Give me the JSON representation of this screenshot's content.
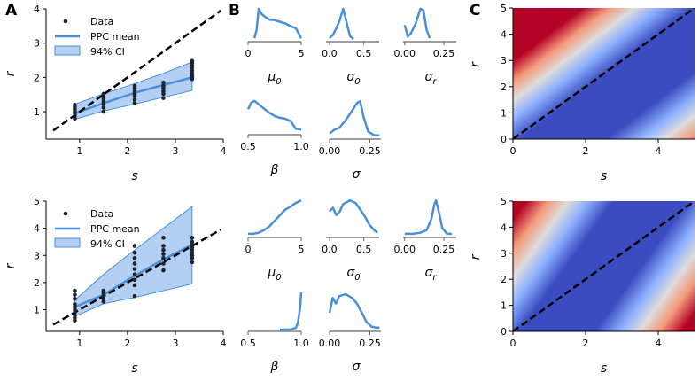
{
  "panel_labels": [
    "A",
    "B",
    "C"
  ],
  "chart_data": [
    {
      "id": "A_top",
      "type": "scatter",
      "xlabel": "s",
      "ylabel": "r",
      "xlim": [
        0.3,
        4.0
      ],
      "ylim": [
        0.2,
        4.0
      ],
      "xticks": [
        1,
        2,
        3,
        4
      ],
      "yticks": [
        1,
        2,
        3,
        4
      ],
      "legend": {
        "position": "top-left",
        "entries": [
          "Data",
          "PPC mean",
          "94% CI"
        ]
      },
      "diagonal": true,
      "scatter": [
        {
          "x": 0.9,
          "y": [
            0.8,
            0.87,
            0.95,
            1.0,
            1.08,
            1.15,
            1.2
          ]
        },
        {
          "x": 1.5,
          "y": [
            1.0,
            1.12,
            1.22,
            1.3,
            1.38,
            1.45,
            1.52
          ]
        },
        {
          "x": 2.15,
          "y": [
            1.25,
            1.35,
            1.45,
            1.52,
            1.6,
            1.68,
            1.75
          ]
        },
        {
          "x": 2.75,
          "y": [
            1.4,
            1.52,
            1.6,
            1.68,
            1.75,
            1.85
          ]
        },
        {
          "x": 3.35,
          "y": [
            1.95,
            2.0,
            2.05,
            2.12,
            2.2,
            2.28,
            2.35,
            2.42,
            2.48
          ]
        }
      ],
      "mean": {
        "x": [
          0.9,
          1.5,
          2.15,
          2.75,
          3.35
        ],
        "y": [
          0.95,
          1.25,
          1.55,
          1.78,
          2.0
        ]
      },
      "ci_lower": [
        0.78,
        1.02,
        1.22,
        1.42,
        1.62
      ],
      "ci_upper": [
        1.22,
        1.52,
        1.82,
        2.12,
        2.45
      ]
    },
    {
      "id": "A_bottom",
      "type": "scatter",
      "xlabel": "s",
      "ylabel": "r",
      "xlim": [
        0.3,
        4.0
      ],
      "ylim": [
        0.2,
        5.0
      ],
      "xticks": [
        1,
        2,
        3,
        4
      ],
      "yticks": [
        1,
        2,
        3,
        4,
        5
      ],
      "legend": {
        "position": "top-left",
        "entries": [
          "Data",
          "PPC mean",
          "94% CI"
        ]
      },
      "diagonal": true,
      "scatter": [
        {
          "x": 0.9,
          "y": [
            0.6,
            0.7,
            0.8,
            0.9,
            1.0,
            1.1,
            1.2,
            1.4,
            1.55,
            1.7
          ]
        },
        {
          "x": 1.5,
          "y": [
            1.3,
            1.4,
            1.5,
            1.6,
            1.7
          ]
        },
        {
          "x": 2.15,
          "y": [
            1.5,
            1.9,
            2.1,
            2.3,
            2.5,
            2.7,
            2.9,
            3.1,
            3.35
          ]
        },
        {
          "x": 2.75,
          "y": [
            2.45,
            2.7,
            2.9,
            3.05,
            3.2,
            3.35,
            3.65
          ]
        },
        {
          "x": 3.35,
          "y": [
            2.75,
            2.9,
            3.0,
            3.1,
            3.2,
            3.3,
            3.4,
            3.5,
            3.65
          ]
        }
      ],
      "mean": {
        "x": [
          0.9,
          1.5,
          2.15,
          2.75,
          3.35
        ],
        "y": [
          1.1,
          1.55,
          2.25,
          2.85,
          3.4
        ]
      },
      "ci_lower": [
        0.75,
        1.22,
        1.45,
        1.7,
        1.95
      ],
      "ci_upper": [
        1.35,
        2.3,
        3.2,
        4.0,
        4.8
      ]
    },
    {
      "id": "B_mu0_top",
      "type": "line",
      "xlabel": "μ0",
      "xlim": [
        0,
        5
      ],
      "xticks": [
        "0",
        "5"
      ],
      "xtick_values": [
        0,
        5
      ],
      "x": [
        0.6,
        0.8,
        1.0,
        1.3,
        1.6,
        2.0,
        2.5,
        3.0,
        3.5,
        4.0,
        4.5,
        5.0
      ],
      "y": [
        0.05,
        0.3,
        0.95,
        0.78,
        0.7,
        0.62,
        0.6,
        0.55,
        0.5,
        0.42,
        0.35,
        0.05
      ]
    },
    {
      "id": "B_sigma0_top",
      "type": "line",
      "xlabel": "σ0",
      "xlim": [
        -0.05,
        0.75
      ],
      "xticks": [
        "0.0",
        "0.5"
      ],
      "xtick_values": [
        0.0,
        0.5
      ],
      "x": [
        0.0,
        0.05,
        0.1,
        0.15,
        0.2,
        0.23,
        0.27,
        0.3,
        0.35
      ],
      "y": [
        0.05,
        0.15,
        0.35,
        0.6,
        0.95,
        0.7,
        0.35,
        0.12,
        0.02
      ]
    },
    {
      "id": "B_sigmar_top",
      "type": "line",
      "xlabel": "σr",
      "xlim": [
        -0.01,
        0.34
      ],
      "xticks": [
        "0.00",
        "0.25"
      ],
      "xtick_values": [
        0.0,
        0.25
      ],
      "x": [
        0.0,
        0.02,
        0.04,
        0.07,
        0.1,
        0.12,
        0.14,
        0.16
      ],
      "y": [
        0.45,
        0.1,
        0.2,
        0.5,
        0.95,
        0.9,
        0.3,
        0.05
      ]
    },
    {
      "id": "B_beta_top",
      "type": "line",
      "xlabel": "β",
      "xlim": [
        0.5,
        1.0
      ],
      "xticks": [
        "0.5",
        "1.0"
      ],
      "xtick_values": [
        0.5,
        1.0
      ],
      "x": [
        0.5,
        0.53,
        0.56,
        0.6,
        0.65,
        0.7,
        0.75,
        0.8,
        0.85,
        0.9,
        0.95,
        1.0
      ],
      "y": [
        0.7,
        0.9,
        0.95,
        0.85,
        0.72,
        0.6,
        0.5,
        0.45,
        0.42,
        0.35,
        0.12,
        0.1
      ]
    },
    {
      "id": "B_sigma_top",
      "type": "line",
      "xlabel": "σ",
      "xlim": [
        0.0,
        0.33
      ],
      "xticks": [
        "0.00",
        "0.25"
      ],
      "xtick_values": [
        0.0,
        0.25
      ],
      "x": [
        0.0,
        0.03,
        0.06,
        0.1,
        0.14,
        0.17,
        0.19,
        0.21,
        0.24,
        0.28,
        0.31
      ],
      "y": [
        0.1,
        0.2,
        0.25,
        0.45,
        0.7,
        0.9,
        0.95,
        0.55,
        0.15,
        0.05,
        0.05
      ]
    },
    {
      "id": "B_mu0_bottom",
      "type": "line",
      "xlabel": "μ0",
      "xlim": [
        0,
        5
      ],
      "xticks": [
        "0",
        "5"
      ],
      "xtick_values": [
        0,
        5
      ],
      "x": [
        0.0,
        0.5,
        1.0,
        1.5,
        2.0,
        2.5,
        3.0,
        3.5,
        4.0,
        4.5,
        5.0
      ],
      "y": [
        0.05,
        0.05,
        0.08,
        0.15,
        0.25,
        0.4,
        0.55,
        0.7,
        0.78,
        0.88,
        0.95
      ]
    },
    {
      "id": "B_sigma0_bottom",
      "type": "line",
      "xlabel": "σ0",
      "xlim": [
        -0.05,
        0.75
      ],
      "xticks": [
        "0.0",
        "0.5"
      ],
      "xtick_values": [
        0.0,
        0.5
      ],
      "x": [
        0.0,
        0.05,
        0.1,
        0.15,
        0.2,
        0.3,
        0.38,
        0.45,
        0.52,
        0.58,
        0.65,
        0.7
      ],
      "y": [
        0.65,
        0.75,
        0.55,
        0.65,
        0.85,
        0.95,
        0.88,
        0.7,
        0.5,
        0.3,
        0.15,
        0.08
      ]
    },
    {
      "id": "B_sigmar_bottom",
      "type": "line",
      "xlabel": "σr",
      "xlim": [
        -0.01,
        0.34
      ],
      "xticks": [
        "0.00",
        "0.25"
      ],
      "xtick_values": [
        0.0,
        0.25
      ],
      "x": [
        0.0,
        0.05,
        0.1,
        0.14,
        0.17,
        0.19,
        0.2,
        0.22,
        0.24,
        0.27,
        0.3
      ],
      "y": [
        0.05,
        0.05,
        0.08,
        0.15,
        0.45,
        0.85,
        0.95,
        0.6,
        0.2,
        0.05,
        0.05
      ]
    },
    {
      "id": "B_beta_bottom",
      "type": "line",
      "xlabel": "β",
      "xlim": [
        0.5,
        1.0
      ],
      "xticks": [
        "0.5",
        "1.0"
      ],
      "xtick_values": [
        0.5,
        1.0
      ],
      "x": [
        0.8,
        0.9,
        0.95,
        0.97,
        0.99,
        1.0
      ],
      "y": [
        0.0,
        0.0,
        0.05,
        0.2,
        0.6,
        1.0
      ]
    },
    {
      "id": "B_sigma_bottom",
      "type": "line",
      "xlabel": "σ",
      "xlim": [
        0.0,
        0.33
      ],
      "xticks": [
        "0.00",
        "0.25"
      ],
      "xtick_values": [
        0.0,
        0.25
      ],
      "x": [
        0.0,
        0.02,
        0.04,
        0.06,
        0.1,
        0.14,
        0.17,
        0.2,
        0.23,
        0.26,
        0.29,
        0.31
      ],
      "y": [
        0.45,
        0.85,
        0.7,
        0.9,
        0.95,
        0.85,
        0.7,
        0.45,
        0.2,
        0.08,
        0.05,
        0.05
      ]
    },
    {
      "id": "C_top",
      "type": "heatmap",
      "xlabel": "s",
      "ylabel": "r",
      "xlim": [
        0,
        5
      ],
      "ylim": [
        0,
        5
      ],
      "xticks": [
        0,
        2,
        4
      ],
      "yticks": [
        0,
        1,
        2,
        3,
        4,
        5
      ],
      "colormap": "coolwarm",
      "diagonal": true,
      "stops": [
        {
          "offset": 0.0,
          "color": "#3b4cc0"
        },
        {
          "offset": 0.28,
          "color": "#3b4cc0"
        },
        {
          "offset": 0.5,
          "color": "#8db0fe"
        },
        {
          "offset": 0.66,
          "color": "#dddcdc"
        },
        {
          "offset": 0.82,
          "color": "#f49a7b"
        },
        {
          "offset": 1.0,
          "color": "#b40426"
        }
      ],
      "band": {
        "center_intercept": -0.2,
        "center_slope": 0.55
      }
    },
    {
      "id": "C_bottom",
      "type": "heatmap",
      "xlabel": "s",
      "ylabel": "r",
      "xlim": [
        0,
        5
      ],
      "ylim": [
        0,
        5
      ],
      "xticks": [
        0,
        2,
        4
      ],
      "yticks": [
        0,
        1,
        2,
        3,
        4,
        5
      ],
      "colormap": "coolwarm",
      "diagonal": true,
      "stops": [
        {
          "offset": 0.0,
          "color": "#3b4cc0"
        },
        {
          "offset": 0.3,
          "color": "#3b4cc0"
        },
        {
          "offset": 0.5,
          "color": "#8db0fe"
        },
        {
          "offset": 0.66,
          "color": "#dddcdc"
        },
        {
          "offset": 0.82,
          "color": "#f49a7b"
        },
        {
          "offset": 1.0,
          "color": "#b40426"
        }
      ],
      "band": {
        "center_intercept": 0.0,
        "center_slope": 1.0
      }
    }
  ]
}
